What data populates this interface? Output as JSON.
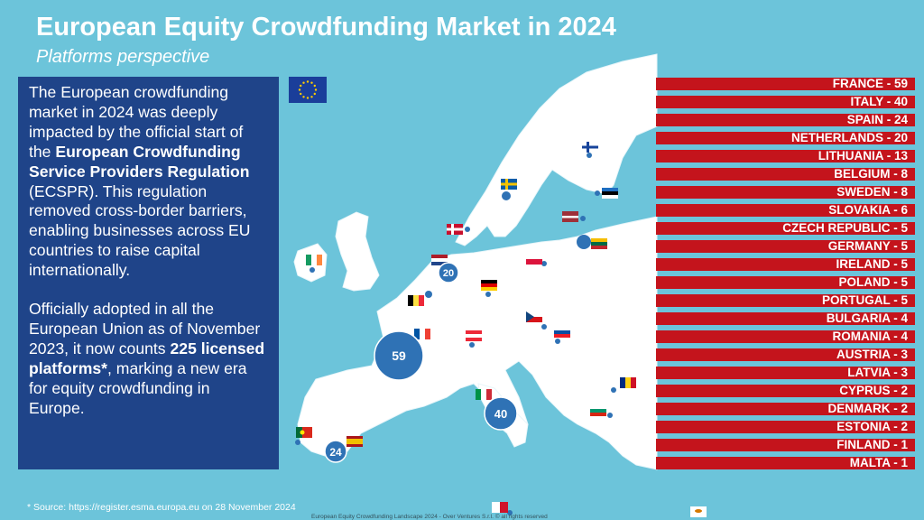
{
  "header": {
    "title": "European Equity Crowdfunding Market in 2024",
    "subtitle": "Platforms perspective"
  },
  "intro": {
    "p1_a": "The European crowdfunding market in 2024 was deeply impacted by the official start of the ",
    "p1_b": "European Crowdfunding Service Providers Regulation",
    "p1_c": " (ECSPR). This regulation removed cross-border barriers, enabling businesses across EU countries to raise capital internationally.",
    "p2_a": "Officially adopted in all the European Union as of November 2023, it now counts ",
    "p2_b": "225 licensed platforms*",
    "p2_c": ", marking a new era for equity crowdfunding in Europe."
  },
  "footnote": "* Source: https://register.esma.europa.eu  on 28 November 2024",
  "footer": "European Equity Crowdfunding Landscape 2024 - Over Ventures S.r.l. © all rights reserved",
  "colors": {
    "background": "#6cc4da",
    "land": "#ffffff",
    "panel": "#1f4489",
    "bar": "#c4141c",
    "bubble": "#2f72b5"
  },
  "chart_data": {
    "type": "bar",
    "title": "European Equity Crowdfunding Market in 2024",
    "categories": [
      "FRANCE",
      "ITALY",
      "SPAIN",
      "NETHERLANDS",
      "LITHUANIA",
      "BELGIUM",
      "SWEDEN",
      "SLOVAKIA",
      "CZECH REPUBLIC",
      "GERMANY",
      "IRELAND",
      "POLAND",
      "PORTUGAL",
      "BULGARIA",
      "ROMANIA",
      "AUSTRIA",
      "LATVIA",
      "CYPRUS",
      "DENMARK",
      "ESTONIA",
      "FINLAND",
      "MALTA"
    ],
    "values": [
      59,
      40,
      24,
      20,
      13,
      8,
      8,
      6,
      5,
      5,
      5,
      5,
      5,
      4,
      4,
      3,
      3,
      2,
      2,
      2,
      1,
      1
    ],
    "map_labels": [
      {
        "country": "FRANCE",
        "label": "59"
      },
      {
        "country": "ITALY",
        "label": "40"
      },
      {
        "country": "SPAIN",
        "label": "24"
      },
      {
        "country": "NETHERLANDS",
        "label": "20"
      }
    ],
    "total_licensed_platforms": 225
  }
}
